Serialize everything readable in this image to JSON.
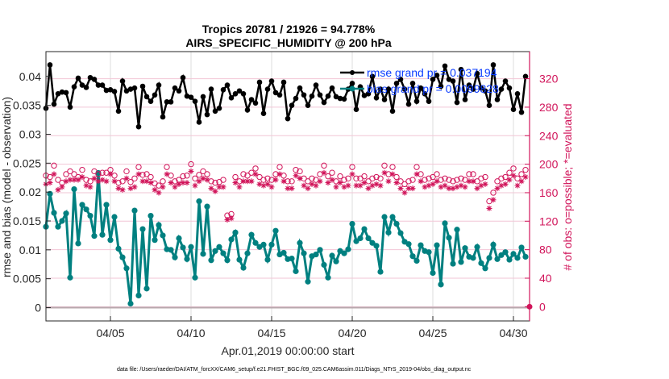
{
  "chart_data": {
    "type": "line",
    "title": [
      "Tropics 20781 / 21926 = 94.778%",
      "AIRS_SPECIFIC_HUMIDITY @ 200 hPa"
    ],
    "xlabel": "Apr.01,2019 00:00:00 start",
    "ylabel": "rmse and bias (model - observation)",
    "y2label": "# of obs: o=possible; *=evaluated",
    "footnote": "data file: /Users/raeder/DAI/ATM_forcXX/CAM6_setup/f.e21.FHIST_BGC.f09_025.CAM6assim.011/Diags_NTrS_2019-04/obs_diag_output.nc",
    "x_unit": "days since Apr.01,2019 00:00",
    "xlim": [
      0,
      30
    ],
    "ylim": [
      -0.0023,
      0.0443
    ],
    "y2lim": [
      -20,
      358
    ],
    "grid": true,
    "legend_position": "top-right",
    "x_ticks": [
      {
        "value": 4,
        "label": "04/05"
      },
      {
        "value": 9,
        "label": "04/10"
      },
      {
        "value": 14,
        "label": "04/15"
      },
      {
        "value": 19,
        "label": "04/20"
      },
      {
        "value": 24,
        "label": "04/25"
      },
      {
        "value": 29,
        "label": "04/30"
      }
    ],
    "y_ticks": [
      0,
      0.005,
      0.01,
      0.015,
      0.02,
      0.025,
      0.03,
      0.035,
      0.04
    ],
    "y_tick_labels": [
      "0",
      "0.005",
      "0.01",
      "0.015",
      "0.02",
      "0.025",
      "0.03",
      "0.035",
      "0.04"
    ],
    "y2_ticks": [
      0,
      40,
      80,
      120,
      160,
      200,
      240,
      280,
      320
    ],
    "y2_tick_labels": [
      "0",
      "40",
      "80",
      "120",
      "160",
      "200",
      "240",
      "280",
      "320"
    ],
    "x_step_days": 0.25,
    "series": [
      {
        "name": "rmse grand pr = 0.037194",
        "axis": "left",
        "color": "#000000",
        "marker": "star-filled",
        "values": [
          0.0345,
          0.042,
          0.0352,
          0.037,
          0.0373,
          0.0372,
          0.0347,
          0.0382,
          0.0397,
          0.0385,
          0.0381,
          0.0398,
          0.0395,
          0.0385,
          0.0385,
          0.0376,
          0.0377,
          0.0374,
          0.034,
          0.0392,
          0.0375,
          0.0378,
          0.038,
          0.0313,
          0.0383,
          0.0365,
          0.0357,
          0.0368,
          0.0385,
          0.033,
          0.0356,
          0.0356,
          0.038,
          0.0375,
          0.0398,
          0.0366,
          0.0364,
          0.0357,
          0.0321,
          0.0365,
          0.0334,
          0.0378,
          0.034,
          0.0345,
          0.0377,
          0.0385,
          0.0363,
          0.037,
          0.0375,
          0.037,
          0.0342,
          0.036,
          0.0354,
          0.039,
          0.0336,
          0.0378,
          0.0392,
          0.0372,
          0.0368,
          0.039,
          0.0327,
          0.035,
          0.0362,
          0.038,
          0.0368,
          0.035,
          0.0366,
          0.0385,
          0.0368,
          0.0355,
          0.0366,
          0.038,
          0.0365,
          0.0362,
          0.0361,
          0.0378,
          0.0388,
          0.0343,
          0.0382,
          0.0367,
          0.037,
          0.04,
          0.0363,
          0.0378,
          0.036,
          0.0378,
          0.034,
          0.0388,
          0.0395,
          0.0378,
          0.0352,
          0.0388,
          0.0357,
          0.038,
          0.037,
          0.0357,
          0.0395,
          0.0402,
          0.0383,
          0.0418,
          0.0395,
          0.0392,
          0.0355,
          0.0412,
          0.036,
          0.0385,
          0.0378,
          0.0405,
          0.038,
          0.0375,
          0.035,
          0.042,
          0.036,
          0.0378,
          0.0392,
          0.038,
          0.0343,
          0.037,
          0.0338,
          0.04
        ]
      },
      {
        "name": "bias grand pr = 0.0099828",
        "axis": "left",
        "color": "#008080",
        "marker": "circle-filled",
        "values": [
          0.014,
          0.0197,
          0.0164,
          0.014,
          0.015,
          0.0163,
          0.0052,
          0.0205,
          0.0111,
          0.0178,
          0.017,
          0.0159,
          0.0124,
          0.0233,
          0.0126,
          0.0178,
          0.0117,
          0.0157,
          0.0102,
          0.0087,
          0.0068,
          0.0007,
          0.0168,
          0.0021,
          0.0136,
          0.0033,
          0.0159,
          0.0117,
          0.0143,
          0.0125,
          0.0101,
          0.01,
          0.0087,
          0.012,
          0.0104,
          0.0084,
          0.0105,
          0.0052,
          0.0184,
          0.0093,
          0.0175,
          0.0082,
          0.0098,
          0.0105,
          0.0094,
          0.0082,
          0.0118,
          0.013,
          0.0083,
          0.0069,
          0.0094,
          0.0126,
          0.0112,
          0.0105,
          0.0109,
          0.0083,
          0.0109,
          0.0133,
          0.0092,
          0.0095,
          0.0084,
          0.0085,
          0.0063,
          0.0112,
          0.0094,
          0.0045,
          0.0089,
          0.0092,
          0.01,
          0.0074,
          0.0052,
          0.009,
          0.008,
          0.0098,
          0.0094,
          0.0101,
          0.0145,
          0.0115,
          0.012,
          0.0136,
          0.012,
          0.0112,
          0.0107,
          0.0062,
          0.0157,
          0.013,
          0.0157,
          0.0145,
          0.0129,
          0.0114,
          0.011,
          0.0089,
          0.0081,
          0.0108,
          0.0098,
          0.0096,
          0.006,
          0.0108,
          0.004,
          0.0146,
          0.0121,
          0.0076,
          0.0135,
          0.0079,
          0.0103,
          0.0088,
          0.0086,
          0.0105,
          0.0077,
          0.0068,
          0.0086,
          0.0109,
          0.0084,
          0.0091,
          0.0096,
          0.0083,
          0.0093,
          0.0086,
          0.0104,
          0.0088
        ]
      },
      {
        "name": "possible",
        "axis": "right",
        "color": "#d1145a",
        "marker": "open-circle",
        "values": [
          184,
          182,
          198,
          178,
          174,
          186,
          190,
          186,
          182,
          192,
          178,
          176,
          190,
          186,
          188,
          188,
          192,
          184,
          174,
          176,
          190,
          175,
          180,
          196,
          185,
          186,
          182,
          173,
          170,
          176,
          196,
          184,
          176,
          178,
          183,
          184,
          200,
          180,
          185,
          190,
          186,
          176,
          174,
          175,
          178,
          128,
          130,
          182,
          176,
          186,
          184,
          188,
          194,
          182,
          178,
          180,
          178,
          186,
          196,
          184,
          176,
          176,
          192,
          190,
          180,
          176,
          180,
          178,
          186,
          198,
          183,
          188,
          176,
          183,
          178,
          180,
          196,
          180,
          180,
          183,
          176,
          180,
          182,
          180,
          198,
          186,
          196,
          182,
          176,
          172,
          176,
          178,
          196,
          186,
          178,
          180,
          182,
          186,
          178,
          180,
          178,
          176,
          178,
          180,
          178,
          186,
          186,
          176,
          180,
          182,
          148,
          160,
          176,
          180,
          182,
          188,
          194,
          180,
          186,
          192
        ]
      },
      {
        "name": "evaluated",
        "axis": "right",
        "color": "#d1145a",
        "marker": "asterisk",
        "values": [
          172,
          174,
          186,
          164,
          168,
          176,
          178,
          178,
          178,
          182,
          170,
          168,
          180,
          176,
          178,
          176,
          186,
          176,
          166,
          164,
          180,
          166,
          168,
          186,
          176,
          176,
          174,
          164,
          160,
          168,
          186,
          174,
          168,
          172,
          174,
          174,
          190,
          170,
          176,
          180,
          178,
          166,
          162,
          168,
          168,
          122,
          124,
          174,
          168,
          176,
          176,
          176,
          186,
          172,
          170,
          172,
          168,
          178,
          186,
          176,
          166,
          166,
          184,
          180,
          170,
          166,
          172,
          170,
          176,
          188,
          174,
          178,
          168,
          174,
          168,
          170,
          186,
          170,
          170,
          174,
          166,
          170,
          172,
          170,
          188,
          176,
          186,
          174,
          166,
          160,
          166,
          166,
          186,
          176,
          168,
          170,
          172,
          176,
          168,
          170,
          166,
          166,
          168,
          170,
          168,
          176,
          176,
          166,
          170,
          172,
          138,
          150,
          166,
          170,
          172,
          178,
          184,
          170,
          176,
          182
        ]
      }
    ],
    "legend": [
      {
        "label": "rmse grand pr = 0.037194",
        "color": "#000000"
      },
      {
        "label": "bias grand pr = 0.0099828",
        "color": "#008080"
      }
    ]
  }
}
